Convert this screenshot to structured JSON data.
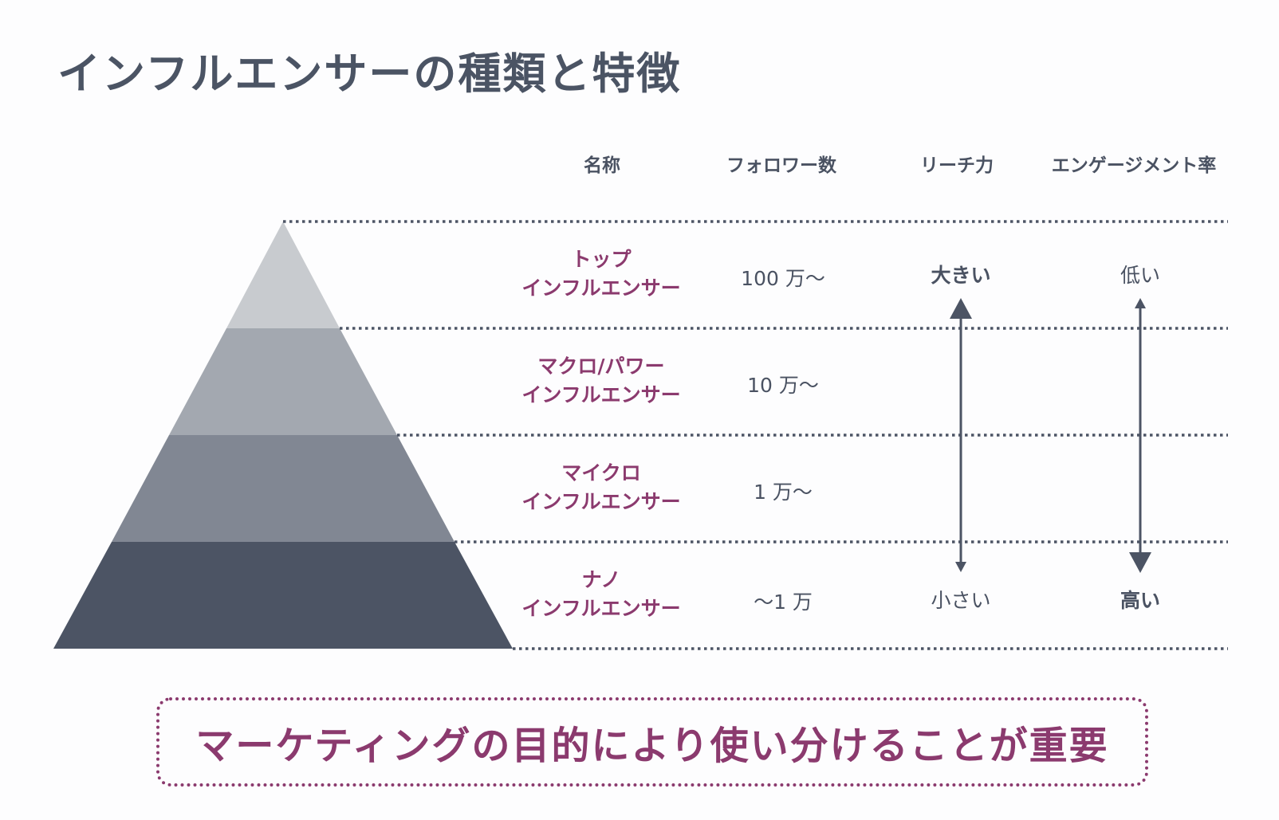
{
  "title": "インフルエンサーの種類と特徴",
  "headers": {
    "name": "名称",
    "followers": "フォロワー数",
    "reach": "リーチ力",
    "engagement": "エンゲージメント率"
  },
  "rows": [
    {
      "name_line1": "トップ",
      "name_line2": "インフルエンサー",
      "followers": "100 万〜",
      "reach": "大きい",
      "engagement": "低い"
    },
    {
      "name_line1": "マクロ/パワー",
      "name_line2": "インフルエンサー",
      "followers": "10 万〜",
      "reach": "",
      "engagement": ""
    },
    {
      "name_line1": "マイクロ",
      "name_line2": "インフルエンサー",
      "followers": "1 万〜",
      "reach": "",
      "engagement": ""
    },
    {
      "name_line1": "ナノ",
      "name_line2": "インフルエンサー",
      "followers": "〜1 万",
      "reach": "小さい",
      "engagement": "高い"
    }
  ],
  "conclusion": "マーケティングの目的により使い分けることが重要",
  "colors": {
    "accent": "#8b3a6e",
    "text": "#4a5262",
    "tier1": "#c8cbcf",
    "tier2": "#a3a8b0",
    "tier3": "#818793",
    "tier4": "#4c5464"
  }
}
